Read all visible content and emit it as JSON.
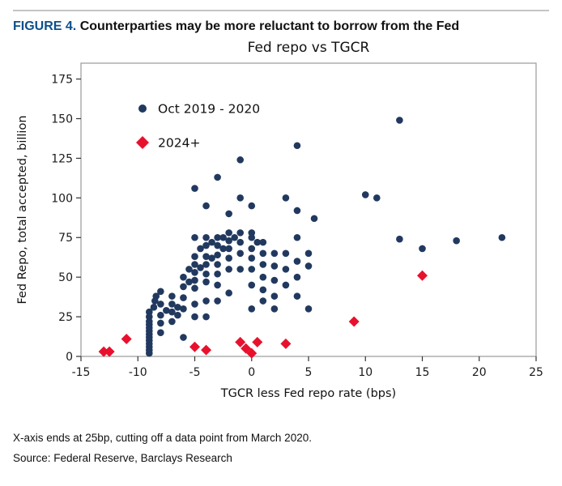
{
  "figure_header": {
    "label": "FIGURE 4.",
    "title": "Counterparties may be more reluctant to borrow from the Fed"
  },
  "footnotes": {
    "note": "X-axis ends at 25bp, cutting off a data point from March 2020.",
    "source": "Source: Federal Reserve, Barclays Research"
  },
  "colors": {
    "figure_label": "#0d4f8b",
    "axis_stroke": "#999999",
    "tick_text": "#1a1a1a",
    "navy_series": "#22395f",
    "red_series": "#e8112d",
    "top_rule": "#c4c4c4"
  },
  "chart_data": {
    "type": "scatter",
    "title": "Fed repo vs TGCR",
    "xlabel": "TGCR less Fed repo rate (bps)",
    "ylabel": "Fed Repo, total accepted, billion",
    "xlim": [
      -15,
      25
    ],
    "ylim": [
      0,
      185
    ],
    "xticks": [
      -15,
      -10,
      -5,
      0,
      5,
      10,
      15,
      20,
      25
    ],
    "yticks": [
      0,
      25,
      50,
      75,
      100,
      125,
      150,
      175
    ],
    "grid": false,
    "legend_position": "upper-left",
    "series": [
      {
        "name": "Oct 2019 - 2020",
        "marker": "circle",
        "color": "#22395f",
        "points": [
          [
            -9,
            2
          ],
          [
            -9,
            4
          ],
          [
            -9,
            6
          ],
          [
            -9,
            8
          ],
          [
            -9,
            10
          ],
          [
            -9,
            12
          ],
          [
            -9,
            14
          ],
          [
            -9,
            16
          ],
          [
            -9,
            18
          ],
          [
            -9,
            20
          ],
          [
            -9,
            22
          ],
          [
            -9,
            25
          ],
          [
            -9,
            28
          ],
          [
            -8.6,
            31
          ],
          [
            -8.5,
            35
          ],
          [
            -8.4,
            38
          ],
          [
            -8,
            15
          ],
          [
            -8,
            21
          ],
          [
            -8,
            26
          ],
          [
            -8,
            33
          ],
          [
            -8,
            41
          ],
          [
            -7.5,
            29
          ],
          [
            -7,
            22
          ],
          [
            -7,
            28
          ],
          [
            -7,
            33
          ],
          [
            -7,
            38
          ],
          [
            -6.5,
            26
          ],
          [
            -6.5,
            31
          ],
          [
            -6,
            12
          ],
          [
            -6,
            30
          ],
          [
            -6,
            37
          ],
          [
            -6,
            44
          ],
          [
            -6,
            50
          ],
          [
            -5.5,
            47
          ],
          [
            -5.5,
            55
          ],
          [
            -5,
            25
          ],
          [
            -5,
            33
          ],
          [
            -5,
            43
          ],
          [
            -5,
            48
          ],
          [
            -5,
            53
          ],
          [
            -5,
            58
          ],
          [
            -5,
            63
          ],
          [
            -5,
            75
          ],
          [
            -5,
            106
          ],
          [
            -4.5,
            56
          ],
          [
            -4.5,
            68
          ],
          [
            -4,
            25
          ],
          [
            -4,
            35
          ],
          [
            -4,
            47
          ],
          [
            -4,
            52
          ],
          [
            -4,
            58
          ],
          [
            -4,
            63
          ],
          [
            -4,
            70
          ],
          [
            -4,
            75
          ],
          [
            -4,
            95
          ],
          [
            -3.5,
            62
          ],
          [
            -3.5,
            72
          ],
          [
            -3,
            35
          ],
          [
            -3,
            45
          ],
          [
            -3,
            52
          ],
          [
            -3,
            58
          ],
          [
            -3,
            64
          ],
          [
            -3,
            70
          ],
          [
            -3,
            75
          ],
          [
            -3,
            113
          ],
          [
            -2.5,
            68
          ],
          [
            -2.5,
            75
          ],
          [
            -2,
            40
          ],
          [
            -2,
            55
          ],
          [
            -2,
            62
          ],
          [
            -2,
            68
          ],
          [
            -2,
            73
          ],
          [
            -2,
            78
          ],
          [
            -2,
            90
          ],
          [
            -1.5,
            75
          ],
          [
            -1,
            55
          ],
          [
            -1,
            65
          ],
          [
            -1,
            72
          ],
          [
            -1,
            78
          ],
          [
            -1,
            100
          ],
          [
            -1,
            124
          ],
          [
            0,
            30
          ],
          [
            0,
            45
          ],
          [
            0,
            55
          ],
          [
            0,
            62
          ],
          [
            0,
            68
          ],
          [
            0,
            75
          ],
          [
            0,
            78
          ],
          [
            0,
            95
          ],
          [
            0.5,
            72
          ],
          [
            1,
            35
          ],
          [
            1,
            42
          ],
          [
            1,
            50
          ],
          [
            1,
            58
          ],
          [
            1,
            65
          ],
          [
            1,
            72
          ],
          [
            2,
            30
          ],
          [
            2,
            38
          ],
          [
            2,
            48
          ],
          [
            2,
            57
          ],
          [
            2,
            65
          ],
          [
            3,
            45
          ],
          [
            3,
            55
          ],
          [
            3,
            65
          ],
          [
            3,
            100
          ],
          [
            4,
            38
          ],
          [
            4,
            50
          ],
          [
            4,
            60
          ],
          [
            4,
            75
          ],
          [
            4,
            92
          ],
          [
            4,
            133
          ],
          [
            5,
            30
          ],
          [
            5,
            57
          ],
          [
            5,
            65
          ],
          [
            5.5,
            87
          ],
          [
            10,
            102
          ],
          [
            11,
            100
          ],
          [
            13,
            74
          ],
          [
            13,
            149
          ],
          [
            15,
            68
          ],
          [
            18,
            73
          ],
          [
            22,
            75
          ]
        ]
      },
      {
        "name": "2024+",
        "marker": "diamond",
        "color": "#e8112d",
        "points": [
          [
            -13,
            3
          ],
          [
            -12.5,
            3
          ],
          [
            -11,
            11
          ],
          [
            -5,
            6
          ],
          [
            -4,
            4
          ],
          [
            -1,
            9
          ],
          [
            -0.5,
            5
          ],
          [
            0,
            2
          ],
          [
            0.5,
            9
          ],
          [
            3,
            8
          ],
          [
            9,
            22
          ],
          [
            15,
            51
          ]
        ]
      }
    ]
  }
}
